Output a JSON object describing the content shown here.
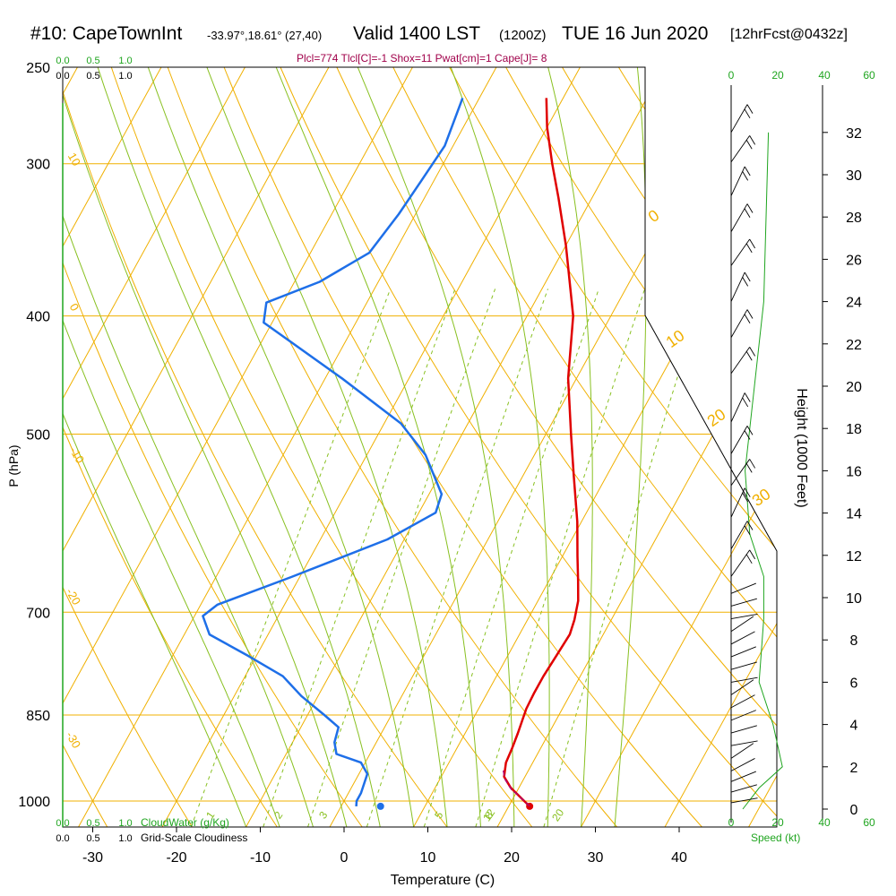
{
  "header": {
    "station": "#10: CapeTownInt",
    "coords": "-33.97°,18.61° (27,40)",
    "valid": "Valid 1400 LST",
    "utc": "(1200Z)",
    "date": "TUE 16 Jun 2020",
    "fcst": "[12hrFcst@0432z]",
    "indices": "Plcl=774 Tlcl[C]=-1 Shox=11 Pwat[cm]=1 Cape[J]= 8"
  },
  "colors": {
    "isotherm": "#f0b000",
    "dry_adiabat": "#f0b000",
    "moist_adiabat": "#88c020",
    "mixing_ratio": "#88c020",
    "temperature": "#e00000",
    "dewpoint": "#1e6fe8",
    "green_text": "#1fa51f",
    "indices_text": "#a0004a"
  },
  "chart_data": {
    "type": "line",
    "title": "#10: CapeTownInt -33.97°,18.61° (27,40) Valid 1400 LST (1200Z) TUE 16 Jun 2020 [12hrFcst@0432z]",
    "xlabel": "Temperature (C)",
    "ylabel": "P (hPa)",
    "y2label": "Height (1000 Feet)",
    "xlim": [
      -35,
      48
    ],
    "x_ticks": [
      "-30",
      "-20",
      "-10",
      "0",
      "10",
      "20",
      "30",
      "40"
    ],
    "y_scale": "log",
    "y_reversed": true,
    "ylim": [
      1030,
      250
    ],
    "y_ticks": [
      "250",
      "300",
      "400",
      "500",
      "700",
      "850",
      "1000"
    ],
    "y2_ticks": [
      "0",
      "2",
      "4",
      "6",
      "8",
      "10",
      "12",
      "14",
      "16",
      "18",
      "20",
      "22",
      "24",
      "26",
      "28",
      "30",
      "32"
    ],
    "cloud_scale_labels": [
      "0.0",
      "0.5",
      "1.0"
    ],
    "cloud_water_label": "CloudWater (g/Kg)",
    "cloudiness_label": "Grid-Scale Cloudiness",
    "speed_label": "Speed (kt)",
    "speed_ticks": [
      "0",
      "20",
      "40",
      "60"
    ],
    "mixing_ratio_labels": [
      "1",
      "2",
      "3",
      "5",
      "8",
      "12",
      "20"
    ],
    "moist_adiabat_labels": [
      "0",
      "10",
      "20",
      "30"
    ],
    "dry_adiabat_labels": [
      "10",
      "0",
      "-10",
      "-20",
      "-30"
    ],
    "series": [
      {
        "name": "Temperature",
        "color": "#e00000",
        "points": [
          [
            22.5,
            1010
          ],
          [
            21.0,
            995
          ],
          [
            19.0,
            975
          ],
          [
            17.5,
            955
          ],
          [
            16.8,
            930
          ],
          [
            16.6,
            905
          ],
          [
            16.3,
            880
          ],
          [
            16.0,
            860
          ],
          [
            15.7,
            840
          ],
          [
            15.6,
            815
          ],
          [
            15.6,
            790
          ],
          [
            15.8,
            760
          ],
          [
            16.0,
            730
          ],
          [
            15.6,
            710
          ],
          [
            14.8,
            685
          ],
          [
            13.5,
            660
          ],
          [
            11.8,
            630
          ],
          [
            9.5,
            590
          ],
          [
            6.0,
            540
          ],
          [
            3.0,
            500
          ],
          [
            -1.0,
            450
          ],
          [
            -4.5,
            400
          ],
          [
            -10.0,
            350
          ],
          [
            -14.0,
            320
          ],
          [
            -17.0,
            300
          ],
          [
            -20.0,
            280
          ],
          [
            -22.0,
            265
          ]
        ]
      },
      {
        "name": "Dewpoint",
        "color": "#1e6fe8",
        "points": [
          [
            1.8,
            1010
          ],
          [
            1.5,
            1000
          ],
          [
            1.5,
            985
          ],
          [
            1.0,
            950
          ],
          [
            -0.5,
            930
          ],
          [
            -4.0,
            915
          ],
          [
            -5.0,
            895
          ],
          [
            -5.5,
            870
          ],
          [
            -8.0,
            850
          ],
          [
            -12.0,
            820
          ],
          [
            -15.5,
            790
          ],
          [
            -21.0,
            760
          ],
          [
            -27.0,
            730
          ],
          [
            -29.0,
            705
          ],
          [
            -28.0,
            690
          ],
          [
            -21.0,
            655
          ],
          [
            -12.0,
            610
          ],
          [
            -8.0,
            580
          ],
          [
            -8.5,
            560
          ],
          [
            -13.0,
            520
          ],
          [
            -18.0,
            490
          ],
          [
            -28.0,
            450
          ],
          [
            -41.0,
            405
          ],
          [
            -42.0,
            390
          ],
          [
            -37.0,
            375
          ],
          [
            -33.0,
            355
          ],
          [
            -32.0,
            330
          ],
          [
            -31.5,
            310
          ],
          [
            -31.0,
            290
          ],
          [
            -32.0,
            265
          ]
        ]
      },
      {
        "name": "Parcel",
        "color": "#b00070",
        "points": [
          [
            22.5,
            1010
          ],
          [
            21.0,
            995
          ],
          [
            19.2,
            978
          ],
          [
            17.8,
            960
          ],
          [
            16.8,
            940
          ]
        ]
      },
      {
        "name": "Surface",
        "color": "#1e6fe8",
        "points": [
          [
            4.7,
            1010
          ]
        ]
      }
    ]
  }
}
